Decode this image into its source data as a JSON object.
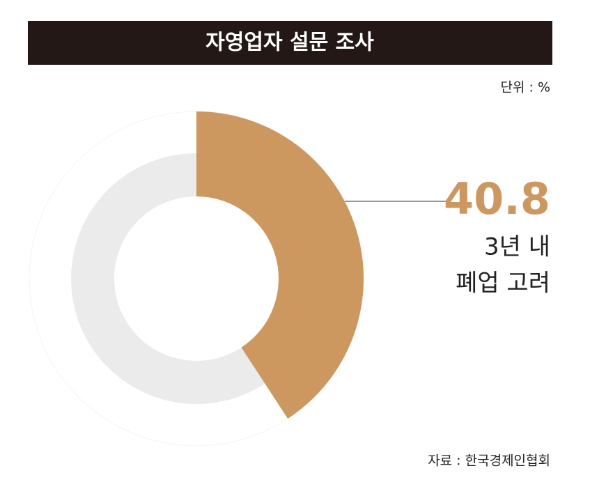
{
  "chart_data": {
    "type": "donut",
    "title": "자영업자 설문 조사",
    "unit": "단위 : %",
    "categories": [
      [
        "3년 내",
        "폐업 고려"
      ]
    ],
    "values": [
      40.8
    ],
    "color": "#cc9860",
    "track_color": "#ebebeb",
    "source": "자료 : 한국경제인협회"
  }
}
